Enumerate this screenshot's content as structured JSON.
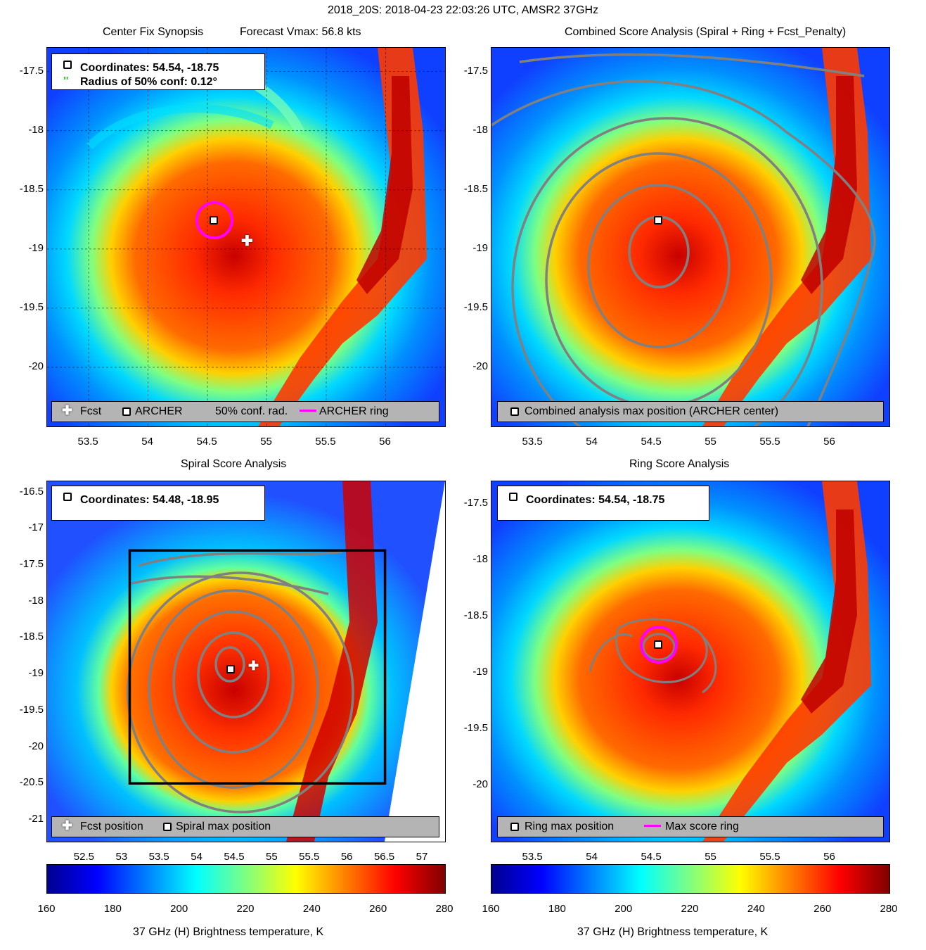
{
  "figure": {
    "title": "2018_20S: 2018-04-23 22:03:26 UTC, AMSR2 37GHz",
    "colorbar_label": "37 GHz (H) Brightness temperature, K"
  },
  "colors": {
    "contour": "#808080",
    "archer_ring": "#ff00ff",
    "legend_bar_bg": "#b4b4b4"
  },
  "chart_data": [
    {
      "type": "heatmap",
      "title_left": "Center Fix Synopsis",
      "title_right": "Forecast Vmax: 56.8 kts",
      "xlim": [
        53.15,
        56.5
      ],
      "ylim": [
        -20.5,
        -17.3
      ],
      "x_ticks": [
        "53.5",
        "54",
        "54.5",
        "55",
        "55.5",
        "56"
      ],
      "y_ticks": [
        "-17.5",
        "-18",
        "-18.5",
        "-19",
        "-19.5",
        "-20"
      ],
      "grid": "on",
      "center": [
        54.54,
        -18.75
      ],
      "forecast": [
        54.8,
        -18.9
      ],
      "legend_text": [
        "Coordinates: 54.54, -18.75",
        "Radius of 50% conf: 0.12°"
      ],
      "legend_bar": [
        "Fcst",
        "ARCHER",
        "50% conf. rad.",
        "ARCHER ring"
      ]
    },
    {
      "type": "heatmap",
      "title": "Combined Score Analysis (Spiral + Ring + Fcst_Penalty)",
      "xlim": [
        53.15,
        56.5
      ],
      "ylim": [
        -20.5,
        -17.3
      ],
      "x_ticks": [
        "53.5",
        "54",
        "54.5",
        "55",
        "55.5",
        "56"
      ],
      "y_ticks": [
        "-17.5",
        "-18",
        "-18.5",
        "-19",
        "-19.5",
        "-20"
      ],
      "center": [
        54.54,
        -18.75
      ],
      "legend_bar": [
        "Combined analysis max position (ARCHER center)"
      ]
    },
    {
      "type": "heatmap",
      "title": "Spiral Score Analysis",
      "xlim": [
        52.0,
        57.3
      ],
      "ylim": [
        -21.3,
        -16.35
      ],
      "x_ticks": [
        "52.5",
        "53",
        "53.5",
        "54",
        "54.5",
        "55",
        "55.5",
        "56",
        "56.5",
        "57"
      ],
      "y_ticks": [
        "-16.5",
        "-17",
        "-17.5",
        "-18",
        "-18.5",
        "-19",
        "-19.5",
        "-20",
        "-20.5",
        "-21"
      ],
      "center": [
        54.48,
        -18.95
      ],
      "forecast": [
        54.8,
        -18.9
      ],
      "search_box": {
        "x": [
          53.1,
          56.5
        ],
        "y": [
          -20.5,
          -17.3
        ]
      },
      "legend_text": [
        "Coordinates: 54.48, -18.95"
      ],
      "legend_bar": [
        "Fcst position",
        "Spiral max position"
      ]
    },
    {
      "type": "heatmap",
      "title": "Ring Score Analysis",
      "xlim": [
        53.15,
        56.5
      ],
      "ylim": [
        -20.5,
        -17.3
      ],
      "x_ticks": [
        "53.5",
        "54",
        "54.5",
        "55",
        "55.5",
        "56"
      ],
      "y_ticks": [
        "-17.5",
        "-18",
        "-18.5",
        "-19",
        "-19.5",
        "-20"
      ],
      "center": [
        54.54,
        -18.75
      ],
      "legend_text": [
        "Coordinates: 54.54, -18.75"
      ],
      "legend_bar": [
        "Ring max position",
        "Max score ring"
      ]
    },
    {
      "type": "colorbar",
      "range": [
        160,
        280
      ],
      "ticks": [
        "160",
        "180",
        "200",
        "220",
        "240",
        "260",
        "280"
      ]
    }
  ]
}
